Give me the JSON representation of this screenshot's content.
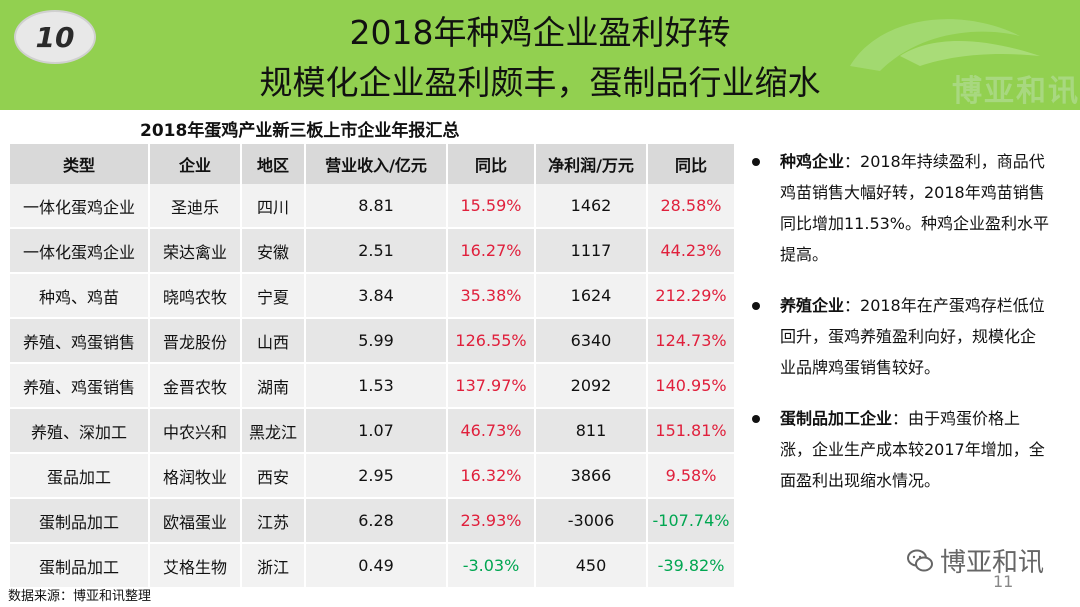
{
  "slide_number": "10",
  "title_line1": "2018年种鸡企业盈利好转",
  "title_line2": "规模化企业盈利颇丰，蛋制品行业缩水",
  "header_watermark": "博亚和讯",
  "table_title": "2018年蛋鸡产业新三板上市企业年报汇总",
  "table": {
    "headers": [
      "类型",
      "企业",
      "地区",
      "营业收入/亿元",
      "同比",
      "净利润/万元",
      "同比"
    ],
    "rows": [
      [
        "一体化蛋鸡企业",
        "圣迪乐",
        "四川",
        "8.81",
        "15.59%",
        "1462",
        "28.58%"
      ],
      [
        "一体化蛋鸡企业",
        "荣达禽业",
        "安徽",
        "2.51",
        "16.27%",
        "1117",
        "44.23%"
      ],
      [
        "种鸡、鸡苗",
        "晓鸣农牧",
        "宁夏",
        "3.84",
        "35.38%",
        "1624",
        "212.29%"
      ],
      [
        "养殖、鸡蛋销售",
        "晋龙股份",
        "山西",
        "5.99",
        "126.55%",
        "6340",
        "124.73%"
      ],
      [
        "养殖、鸡蛋销售",
        "金晋农牧",
        "湖南",
        "1.53",
        "137.97%",
        "2092",
        "140.95%"
      ],
      [
        "养殖、深加工",
        "中农兴和",
        "黑龙江",
        "1.07",
        "46.73%",
        "811",
        "151.81%"
      ],
      [
        "蛋品加工",
        "格润牧业",
        "西安",
        "2.95",
        "16.32%",
        "3866",
        "9.58%"
      ],
      [
        "蛋制品加工",
        "欧福蛋业",
        "江苏",
        "6.28",
        "23.93%",
        "-3006",
        "-107.74%"
      ],
      [
        "蛋制品加工",
        "艾格生物",
        "浙江",
        "0.49",
        "-3.03%",
        "450",
        "-39.82%"
      ]
    ]
  },
  "notes": [
    {
      "lead": "种鸡企业",
      "text": "：2018年持续盈利，商品代鸡苗销售大幅好转，2018年鸡苗销售同比增加11.53%。种鸡企业盈利水平提高。"
    },
    {
      "lead": "养殖企业",
      "text": "：2018年在产蛋鸡存栏低位回升，蛋鸡养殖盈利向好，规模化企业品牌鸡蛋销售较好。"
    },
    {
      "lead": "蛋制品加工企业",
      "text": "：由于鸡蛋价格上涨，企业生产成本较2017年增加，全面盈利出现缩水情况。"
    }
  ],
  "source": "数据来源：博亚和讯整理",
  "brand": "博亚和讯",
  "page_number": "11",
  "colors": {
    "header_bg": "#92d050",
    "positive": "#e0203c",
    "negative": "#00a651"
  }
}
